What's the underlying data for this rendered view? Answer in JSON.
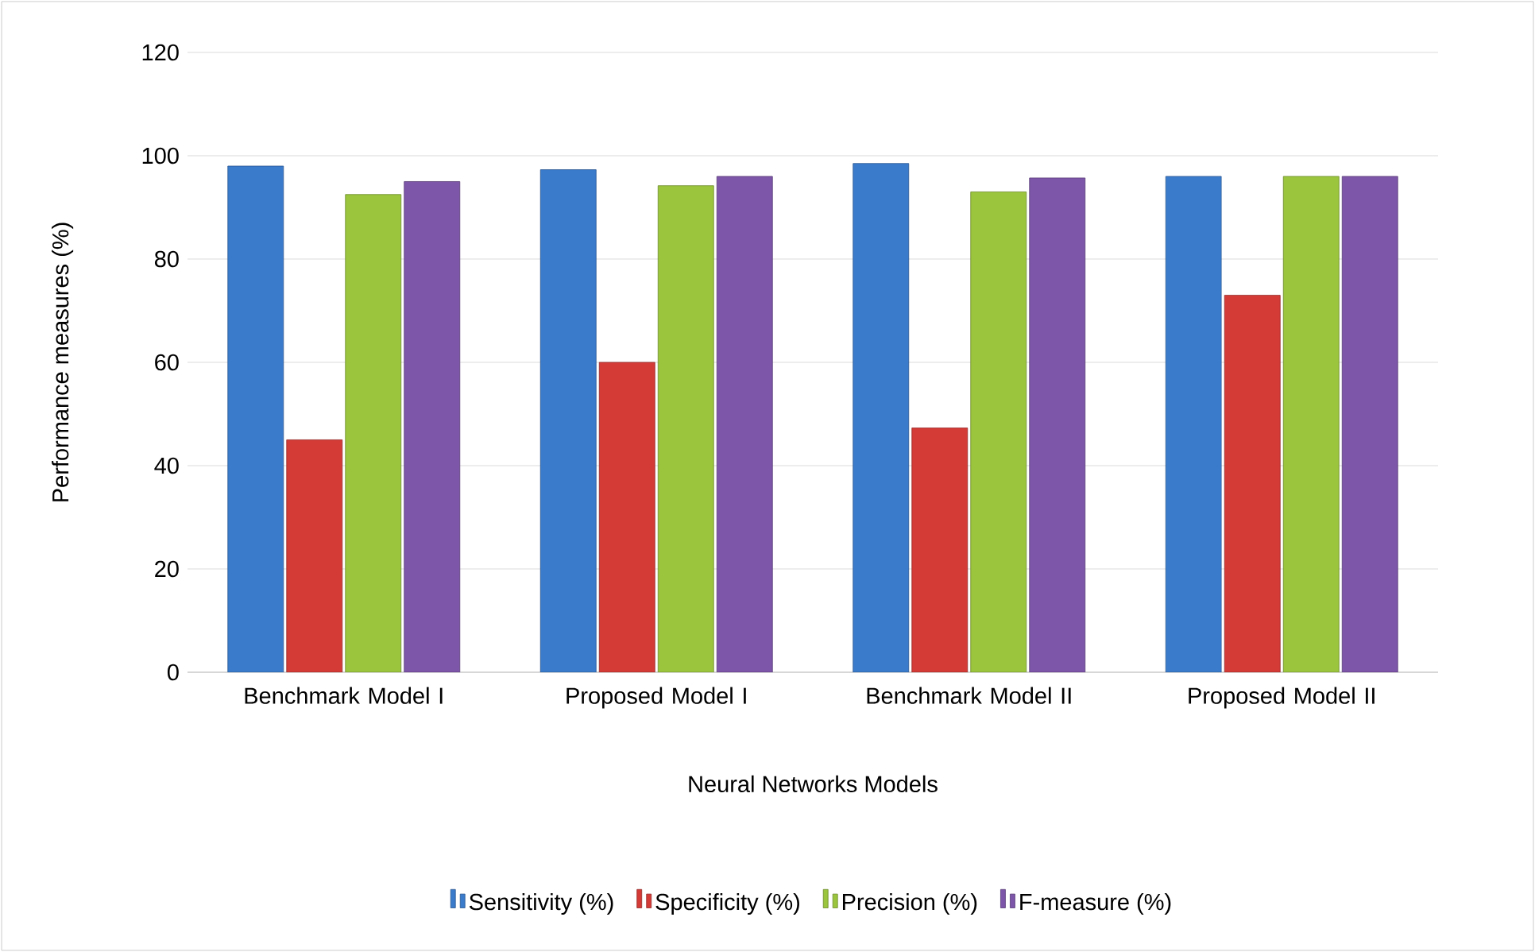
{
  "chart_data": {
    "type": "bar",
    "xlabel": "Neural Networks Models",
    "ylabel": "Performance measures (%)",
    "categories": [
      "Benchmark Model I",
      "Proposed Model I",
      "Benchmark Model II",
      "Proposed Model II"
    ],
    "series": [
      {
        "name": "Sensitivity (%)",
        "color": "#3a7bcc",
        "values": [
          98,
          97.3,
          98.5,
          96
        ]
      },
      {
        "name": "Specificity (%)",
        "color": "#d43b37",
        "values": [
          45,
          60,
          47.3,
          73
        ]
      },
      {
        "name": "Precision (%)",
        "color": "#9bc53d",
        "values": [
          92.5,
          94.2,
          93,
          96
        ]
      },
      {
        "name": "F-measure (%)",
        "color": "#7d55a9",
        "values": [
          95,
          96,
          95.7,
          96
        ]
      }
    ],
    "ylim": [
      0,
      120
    ],
    "yticks": [
      0,
      20,
      40,
      60,
      80,
      100,
      120
    ],
    "grid": "y",
    "legend": "bottom"
  }
}
